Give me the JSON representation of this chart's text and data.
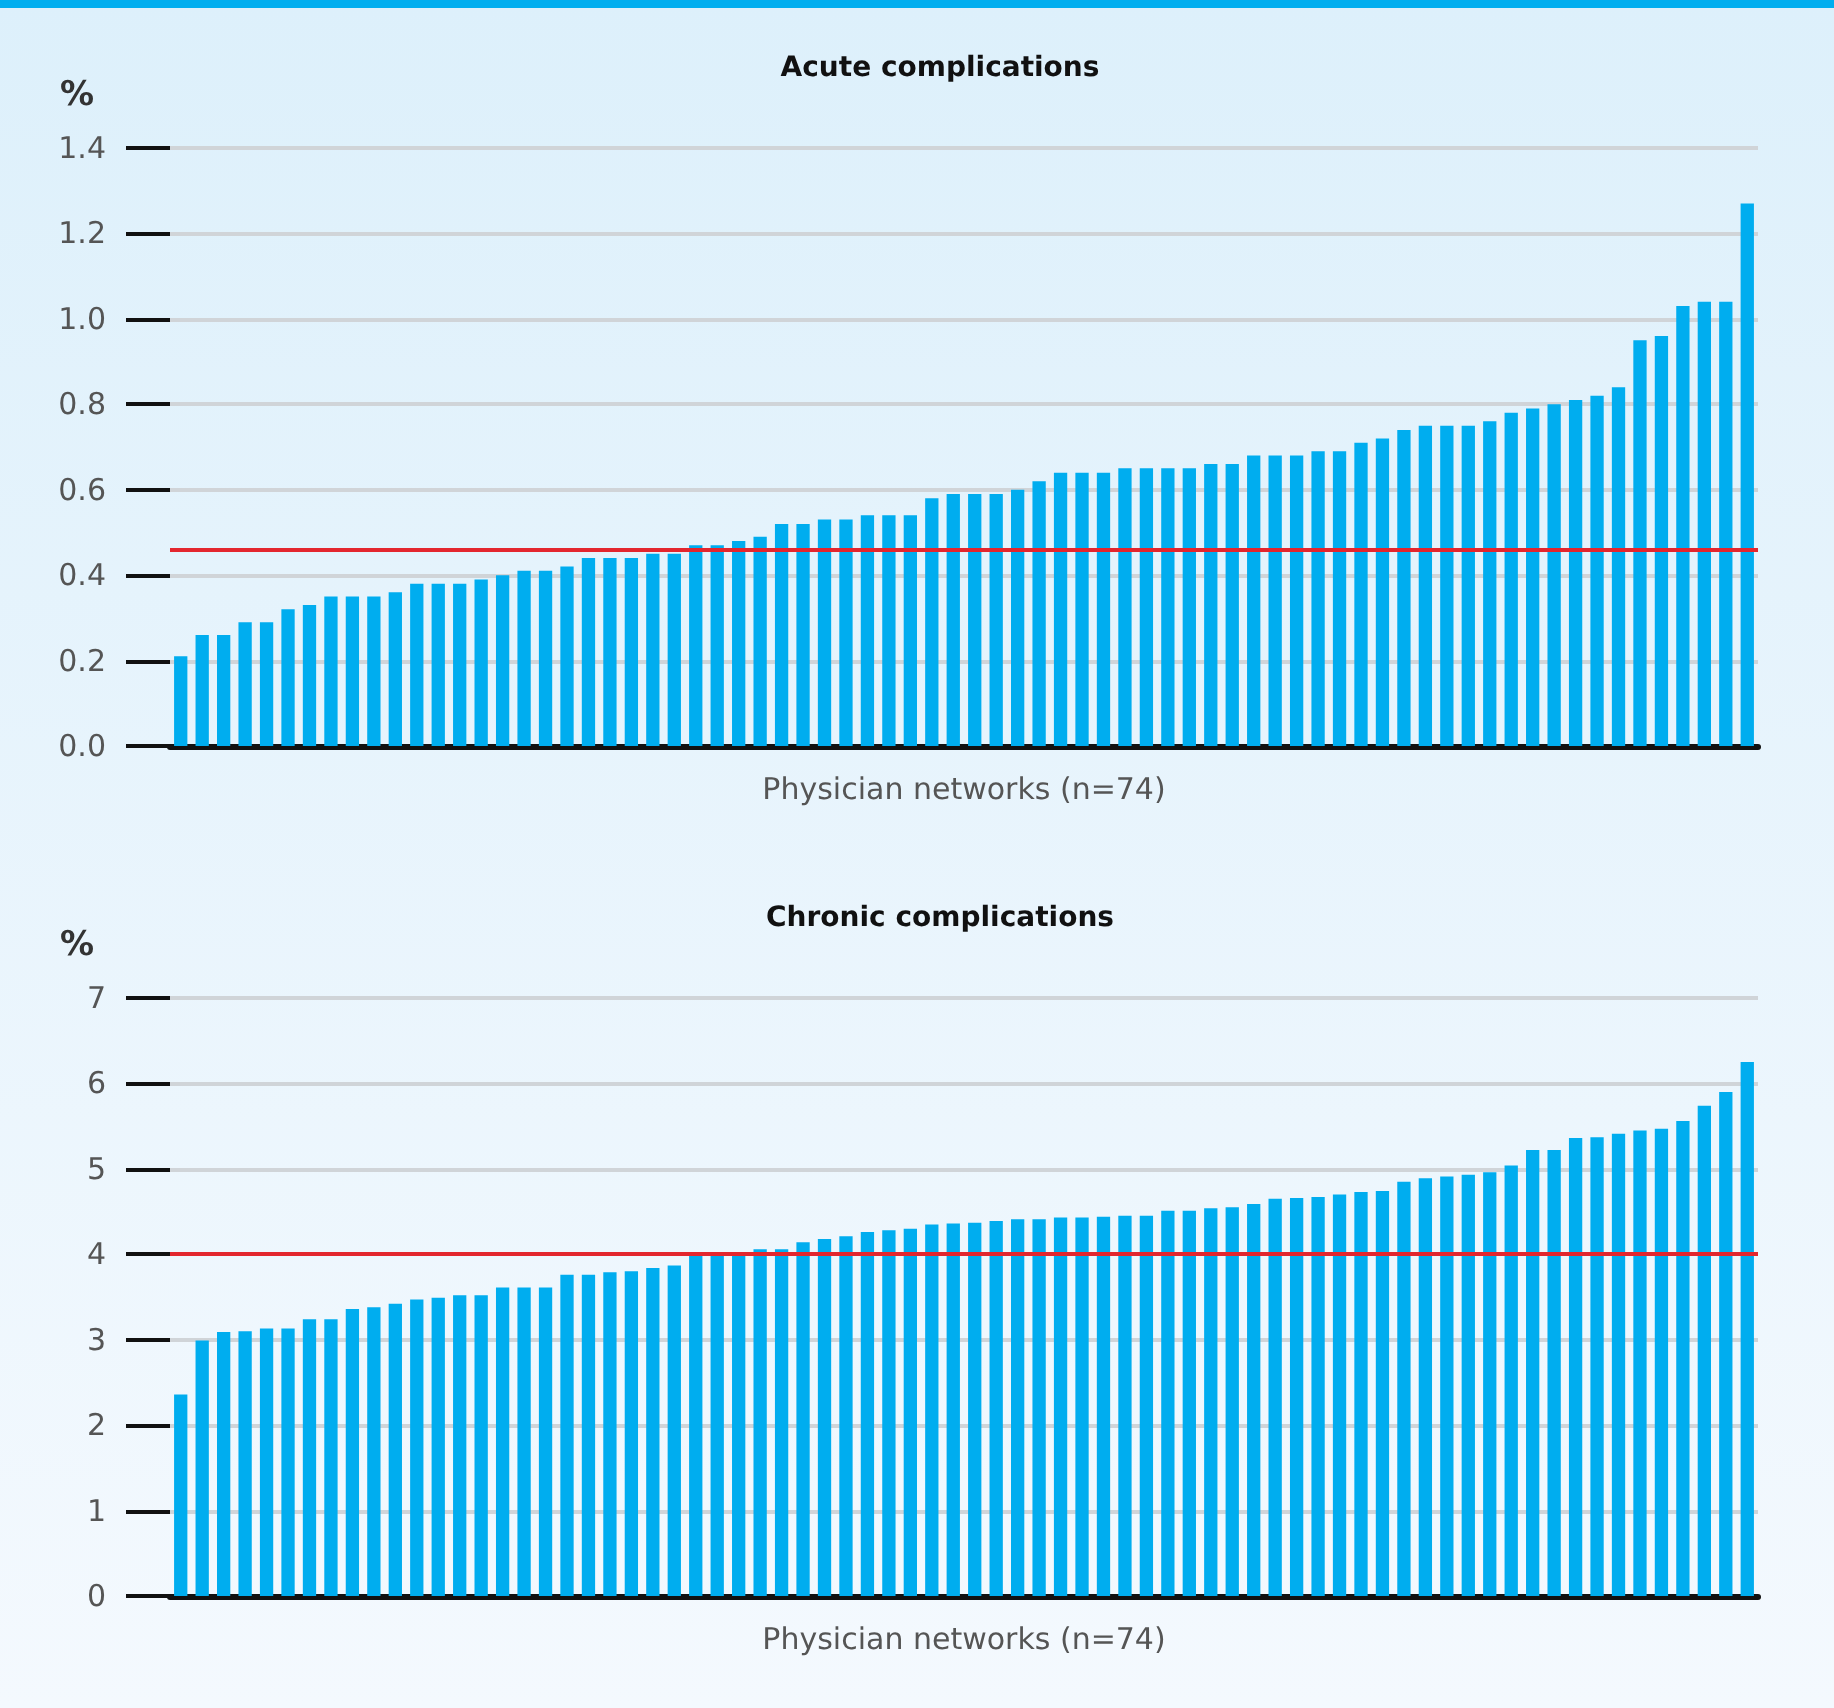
{
  "chart_data": [
    {
      "type": "bar",
      "title": "Acute complications",
      "xlabel": "Physician networks (n=74)",
      "ylabel": "%",
      "categories": [
        null,
        null,
        null,
        null,
        null,
        null,
        null,
        null,
        null,
        null,
        null,
        null,
        null,
        null,
        null,
        null,
        null,
        null,
        null,
        null,
        null,
        null,
        null,
        null,
        null,
        null,
        null,
        null,
        null,
        null,
        null,
        null,
        null,
        null,
        null,
        null,
        null,
        null,
        null,
        null,
        null,
        null,
        null,
        null,
        null,
        null,
        null,
        null,
        null,
        null,
        null,
        null,
        null,
        null,
        null,
        null,
        null,
        null,
        null,
        null,
        null,
        null,
        null,
        null,
        null,
        null,
        null,
        null,
        null,
        null,
        null,
        null,
        null,
        null
      ],
      "series": [
        {
          "color": "#00adef",
          "values": [
            0.21,
            0.26,
            0.26,
            0.29,
            0.29,
            0.32,
            0.33,
            0.35,
            0.35,
            0.35,
            0.36,
            0.38,
            0.38,
            0.38,
            0.39,
            0.4,
            0.41,
            0.41,
            0.42,
            0.44,
            0.44,
            0.44,
            0.45,
            0.45,
            0.47,
            0.47,
            0.48,
            0.49,
            0.52,
            0.52,
            0.53,
            0.53,
            0.54,
            0.54,
            0.54,
            0.58,
            0.59,
            0.59,
            0.59,
            0.6,
            0.62,
            0.64,
            0.64,
            0.64,
            0.65,
            0.65,
            0.65,
            0.65,
            0.66,
            0.66,
            0.68,
            0.68,
            0.68,
            0.69,
            0.69,
            0.71,
            0.72,
            0.74,
            0.75,
            0.75,
            0.75,
            0.76,
            0.78,
            0.79,
            0.8,
            0.81,
            0.82,
            0.84,
            0.95,
            0.96,
            1.03,
            1.04,
            1.04,
            1.27
          ]
        }
      ],
      "ylim": [
        0,
        1.4
      ],
      "yticks": [
        {
          "value": 0,
          "label": "0.0"
        },
        0.2,
        0.4,
        0.6,
        0.8,
        {
          "value": 1,
          "label": "1.0"
        },
        1.2,
        1.4
      ],
      "grid": "y",
      "tick_labels": "y",
      "ref_lines": [
        {
          "axis": "y",
          "value": 0.46,
          "color": "#e3262e"
        }
      ]
    },
    {
      "type": "bar",
      "title": "Chronic complications",
      "xlabel": "Physician networks (n=74)",
      "ylabel": "%",
      "categories": [
        null,
        null,
        null,
        null,
        null,
        null,
        null,
        null,
        null,
        null,
        null,
        null,
        null,
        null,
        null,
        null,
        null,
        null,
        null,
        null,
        null,
        null,
        null,
        null,
        null,
        null,
        null,
        null,
        null,
        null,
        null,
        null,
        null,
        null,
        null,
        null,
        null,
        null,
        null,
        null,
        null,
        null,
        null,
        null,
        null,
        null,
        null,
        null,
        null,
        null,
        null,
        null,
        null,
        null,
        null,
        null,
        null,
        null,
        null,
        null,
        null,
        null,
        null,
        null,
        null,
        null,
        null,
        null,
        null,
        null,
        null,
        null,
        null,
        null
      ],
      "series": [
        {
          "color": "#00adef",
          "values": [
            2.36,
            2.99,
            3.09,
            3.1,
            3.13,
            3.13,
            3.24,
            3.24,
            3.36,
            3.38,
            3.42,
            3.47,
            3.49,
            3.52,
            3.52,
            3.61,
            3.61,
            3.61,
            3.76,
            3.76,
            3.79,
            3.8,
            3.84,
            3.87,
            3.99,
            3.99,
            3.99,
            4.06,
            4.06,
            4.14,
            4.18,
            4.21,
            4.26,
            4.28,
            4.3,
            4.35,
            4.36,
            4.37,
            4.39,
            4.41,
            4.41,
            4.43,
            4.43,
            4.44,
            4.45,
            4.45,
            4.51,
            4.51,
            4.54,
            4.55,
            4.59,
            4.65,
            4.66,
            4.67,
            4.7,
            4.73,
            4.74,
            4.85,
            4.89,
            4.91,
            4.93,
            4.96,
            5.04,
            5.22,
            5.22,
            5.36,
            5.37,
            5.41,
            5.45,
            5.47,
            5.56,
            5.74,
            5.9,
            6.25
          ]
        }
      ],
      "ylim": [
        0,
        7
      ],
      "yticks": [
        0,
        1,
        2,
        3,
        4,
        5,
        6,
        7
      ],
      "grid": "y",
      "tick_labels": "y",
      "ref_lines": [
        {
          "axis": "y",
          "value": 4,
          "color": "#e3262e"
        }
      ]
    }
  ]
}
